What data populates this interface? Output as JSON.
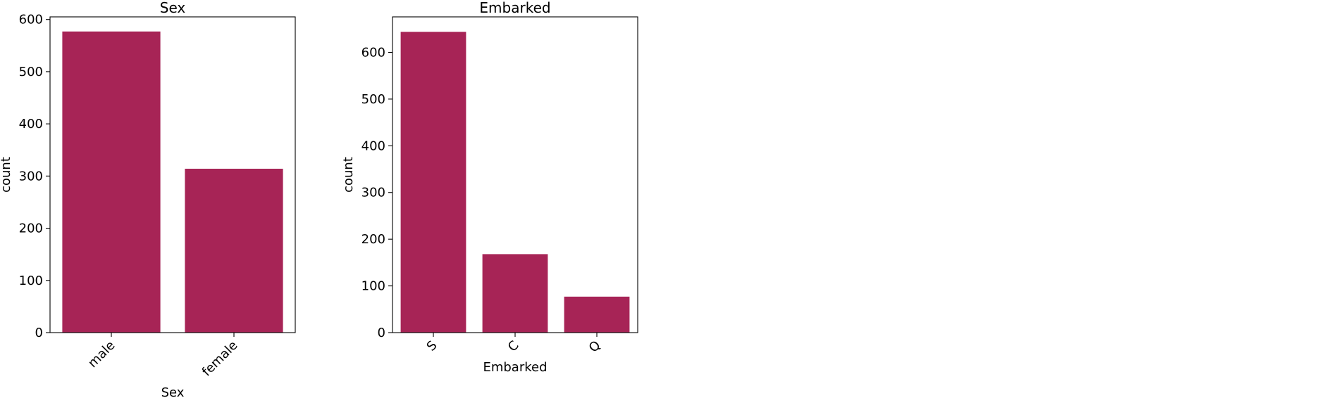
{
  "chart_data": [
    {
      "type": "bar",
      "title": "Sex",
      "xlabel": "Sex",
      "ylabel": "count",
      "categories": [
        "male",
        "female"
      ],
      "values": [
        577,
        314
      ],
      "ylim": [
        0,
        605
      ],
      "yticks": [
        0,
        100,
        200,
        300,
        400,
        500,
        600
      ],
      "x_tick_rotation": 45,
      "grid": false,
      "color": "#a72456"
    },
    {
      "type": "bar",
      "title": "Embarked",
      "xlabel": "Embarked",
      "ylabel": "count",
      "categories": [
        "S",
        "C",
        "Q"
      ],
      "values": [
        644,
        168,
        77
      ],
      "ylim": [
        0,
        676
      ],
      "yticks": [
        0,
        100,
        200,
        300,
        400,
        500,
        600
      ],
      "x_tick_rotation": 45,
      "grid": false,
      "color": "#a72456"
    }
  ]
}
